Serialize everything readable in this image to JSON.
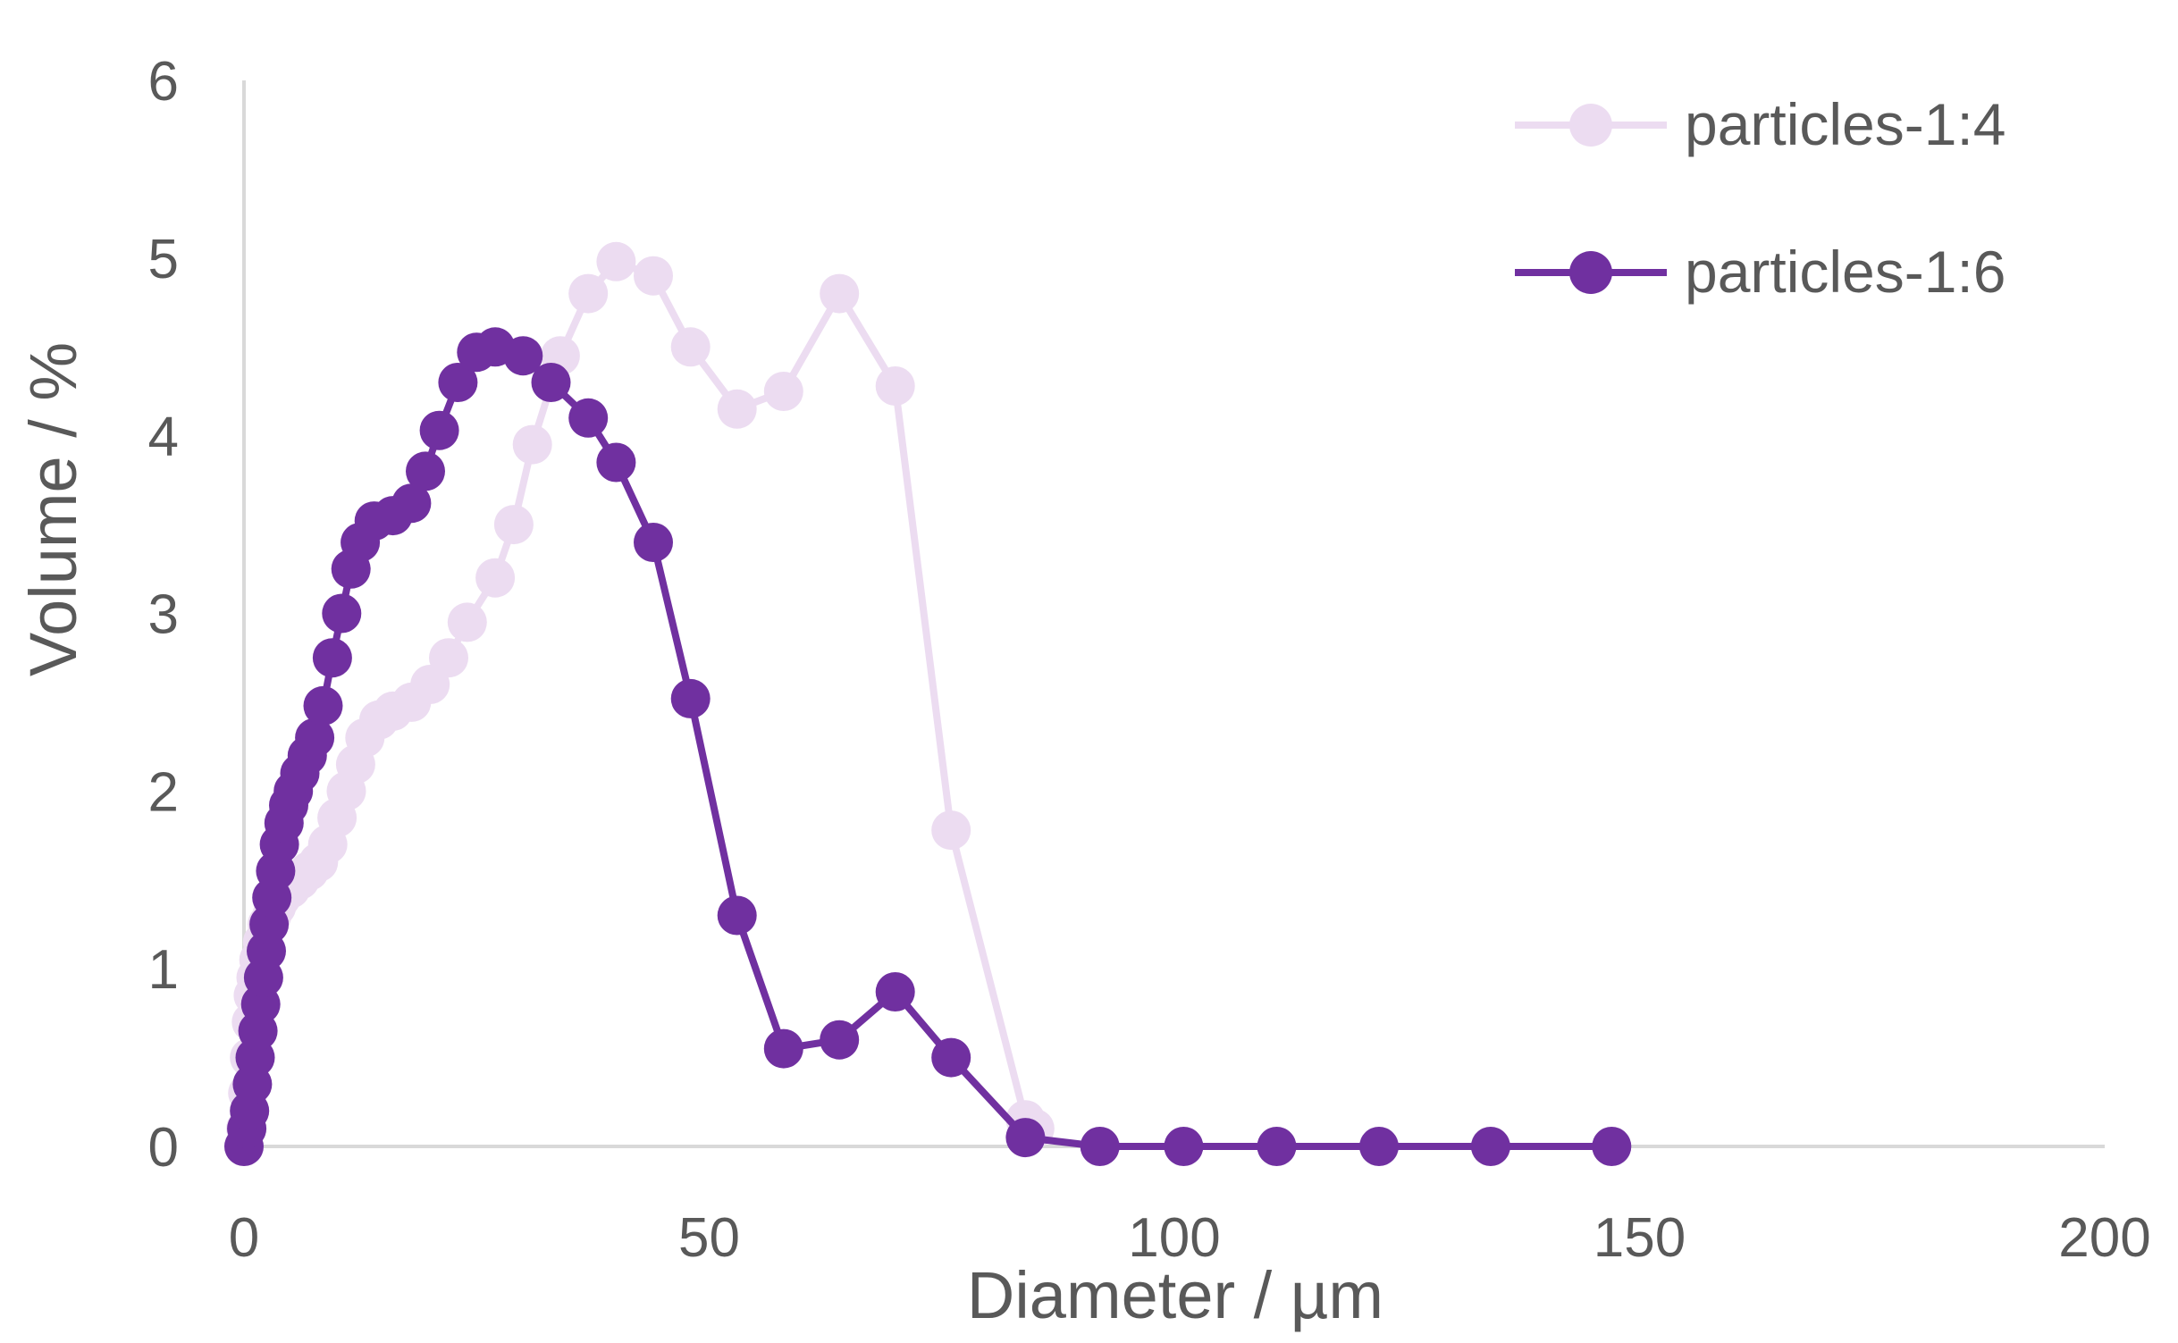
{
  "chart_data": {
    "type": "line",
    "title": "",
    "xlabel": "Diameter / µm",
    "ylabel": "Volume / %",
    "xlim": [
      0,
      200
    ],
    "ylim": [
      0,
      6
    ],
    "x_ticks": [
      "0",
      "50",
      "100",
      "150",
      "200"
    ],
    "y_ticks": [
      "0",
      "1",
      "2",
      "3",
      "4",
      "5",
      "6"
    ],
    "grid": false,
    "legend_position": "top-right",
    "series": [
      {
        "name": "particles-1:4",
        "color": "#ecdcf1",
        "marker": "circle",
        "points": [
          [
            0.0,
            0.0
          ],
          [
            0.2,
            0.1
          ],
          [
            0.4,
            0.3
          ],
          [
            0.6,
            0.5
          ],
          [
            0.8,
            0.7
          ],
          [
            1.0,
            0.85
          ],
          [
            1.3,
            0.95
          ],
          [
            1.6,
            1.05
          ],
          [
            2.0,
            1.15
          ],
          [
            2.5,
            1.25
          ],
          [
            3.0,
            1.3
          ],
          [
            3.5,
            1.35
          ],
          [
            4.0,
            1.4
          ],
          [
            5.0,
            1.45
          ],
          [
            6.0,
            1.5
          ],
          [
            7.0,
            1.55
          ],
          [
            8.0,
            1.6
          ],
          [
            9.0,
            1.7
          ],
          [
            10.0,
            1.85
          ],
          [
            11.0,
            2.0
          ],
          [
            12.0,
            2.15
          ],
          [
            13.0,
            2.3
          ],
          [
            14.5,
            2.4
          ],
          [
            16.0,
            2.45
          ],
          [
            18.0,
            2.5
          ],
          [
            20.0,
            2.6
          ],
          [
            22.0,
            2.75
          ],
          [
            24.0,
            2.95
          ],
          [
            27.0,
            3.2
          ],
          [
            29.0,
            3.5
          ],
          [
            31.0,
            3.95
          ],
          [
            34.0,
            4.45
          ],
          [
            37.0,
            4.8
          ],
          [
            40.0,
            4.98
          ],
          [
            44.0,
            4.9
          ],
          [
            48.0,
            4.5
          ],
          [
            53.0,
            4.15
          ],
          [
            58.0,
            4.25
          ],
          [
            64.0,
            4.8
          ],
          [
            70.0,
            4.28
          ],
          [
            76.0,
            1.78
          ],
          [
            84.0,
            0.15
          ],
          [
            85.0,
            0.1
          ]
        ]
      },
      {
        "name": "particles-1:6",
        "color": "#7030a0",
        "marker": "circle",
        "points": [
          [
            0.0,
            0.0
          ],
          [
            0.3,
            0.1
          ],
          [
            0.6,
            0.2
          ],
          [
            0.9,
            0.35
          ],
          [
            1.2,
            0.5
          ],
          [
            1.5,
            0.65
          ],
          [
            1.8,
            0.8
          ],
          [
            2.1,
            0.95
          ],
          [
            2.4,
            1.1
          ],
          [
            2.7,
            1.25
          ],
          [
            3.0,
            1.4
          ],
          [
            3.4,
            1.55
          ],
          [
            3.8,
            1.7
          ],
          [
            4.3,
            1.82
          ],
          [
            4.8,
            1.92
          ],
          [
            5.3,
            2.0
          ],
          [
            6.0,
            2.1
          ],
          [
            6.8,
            2.2
          ],
          [
            7.6,
            2.3
          ],
          [
            8.5,
            2.48
          ],
          [
            9.5,
            2.75
          ],
          [
            10.5,
            3.0
          ],
          [
            11.5,
            3.25
          ],
          [
            12.5,
            3.4
          ],
          [
            14.0,
            3.52
          ],
          [
            16.0,
            3.55
          ],
          [
            18.0,
            3.62
          ],
          [
            19.5,
            3.8
          ],
          [
            21.0,
            4.03
          ],
          [
            23.0,
            4.3
          ],
          [
            25.0,
            4.47
          ],
          [
            27.0,
            4.5
          ],
          [
            30.0,
            4.45
          ],
          [
            33.0,
            4.3
          ],
          [
            37.0,
            4.1
          ],
          [
            40.0,
            3.85
          ],
          [
            44.0,
            3.4
          ],
          [
            48.0,
            2.52
          ],
          [
            53.0,
            1.3
          ],
          [
            58.0,
            0.55
          ],
          [
            64.0,
            0.6
          ],
          [
            70.0,
            0.87
          ],
          [
            76.0,
            0.5
          ],
          [
            84.0,
            0.05
          ],
          [
            92.0,
            0.0
          ],
          [
            101.0,
            0.0
          ],
          [
            111.0,
            0.0
          ],
          [
            122.0,
            0.0
          ],
          [
            134.0,
            0.0
          ],
          [
            147.0,
            0.0
          ]
        ]
      }
    ]
  }
}
